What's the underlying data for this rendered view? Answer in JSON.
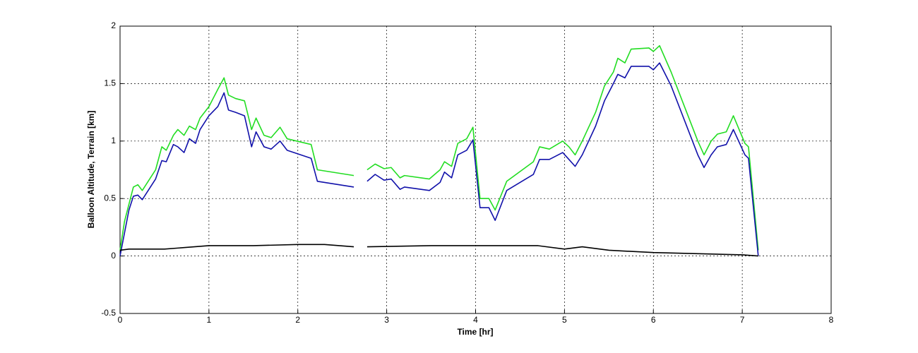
{
  "chart_data": {
    "type": "line",
    "xlabel": "Time [hr]",
    "ylabel": "Balloon Altitude, Terrain [km]",
    "xlim": [
      0,
      8
    ],
    "xticks": [
      0,
      1,
      2,
      3,
      4,
      5,
      6,
      7,
      8
    ],
    "ylim": [
      -0.5,
      2
    ],
    "yticks": [
      -0.5,
      0,
      0.5,
      1,
      1.5,
      2
    ],
    "grid": true,
    "series": [
      {
        "color": "#22dd22",
        "x": [
          0,
          0.05,
          0.1,
          0.15,
          0.2,
          0.25,
          0.4,
          0.47,
          0.52,
          0.6,
          0.65,
          0.72,
          0.78,
          0.85,
          0.9,
          1.0,
          1.1,
          1.17,
          1.22,
          1.3,
          1.4,
          1.48,
          1.53,
          1.62,
          1.7,
          1.8,
          1.88,
          2.15,
          2.22,
          2.63,
          2.7,
          2.78,
          2.87,
          2.97,
          3.05,
          3.15,
          3.2,
          3.48,
          3.6,
          3.65,
          3.73,
          3.8,
          3.9,
          3.97,
          4.05,
          4.15,
          4.22,
          4.35,
          4.65,
          4.72,
          4.83,
          4.98,
          5.05,
          5.12,
          5.2,
          5.35,
          5.45,
          5.55,
          5.6,
          5.68,
          5.75,
          5.95,
          6.0,
          6.07,
          6.2,
          6.5,
          6.57,
          6.65,
          6.72,
          6.82,
          6.9,
          7.03,
          7.07,
          7.18
        ],
        "values": [
          0.05,
          0.3,
          0.45,
          0.6,
          0.62,
          0.57,
          0.75,
          0.95,
          0.92,
          1.05,
          1.1,
          1.05,
          1.13,
          1.1,
          1.2,
          1.3,
          1.45,
          1.55,
          1.4,
          1.37,
          1.35,
          1.1,
          1.2,
          1.05,
          1.03,
          1.12,
          1.02,
          0.97,
          0.75,
          0.7,
          null,
          0.75,
          0.8,
          0.76,
          0.77,
          0.68,
          0.7,
          0.67,
          0.75,
          0.82,
          0.78,
          0.98,
          1.02,
          1.12,
          0.5,
          0.5,
          0.4,
          0.65,
          0.82,
          0.95,
          0.93,
          1.0,
          0.95,
          0.88,
          1.0,
          1.25,
          1.48,
          1.6,
          1.72,
          1.68,
          1.8,
          1.81,
          1.78,
          1.83,
          1.6,
          1.0,
          0.88,
          1.0,
          1.06,
          1.08,
          1.22,
          0.98,
          0.95,
          0.05
        ]
      },
      {
        "color": "#1111aa",
        "x": [
          0,
          0.05,
          0.1,
          0.15,
          0.2,
          0.25,
          0.4,
          0.47,
          0.52,
          0.6,
          0.65,
          0.72,
          0.78,
          0.85,
          0.9,
          1.0,
          1.1,
          1.17,
          1.22,
          1.3,
          1.4,
          1.48,
          1.53,
          1.62,
          1.7,
          1.8,
          1.88,
          2.15,
          2.22,
          2.63,
          2.7,
          2.78,
          2.87,
          2.97,
          3.05,
          3.15,
          3.2,
          3.48,
          3.6,
          3.65,
          3.73,
          3.8,
          3.9,
          3.97,
          4.05,
          4.15,
          4.22,
          4.35,
          4.65,
          4.72,
          4.83,
          4.98,
          5.05,
          5.12,
          5.2,
          5.35,
          5.45,
          5.55,
          5.6,
          5.68,
          5.75,
          5.95,
          6.0,
          6.07,
          6.2,
          6.5,
          6.57,
          6.65,
          6.72,
          6.82,
          6.9,
          7.03,
          7.07,
          7.18
        ],
        "values": [
          0.0,
          0.2,
          0.4,
          0.52,
          0.53,
          0.49,
          0.67,
          0.83,
          0.82,
          0.97,
          0.95,
          0.9,
          1.02,
          0.98,
          1.1,
          1.22,
          1.3,
          1.42,
          1.27,
          1.25,
          1.22,
          0.95,
          1.08,
          0.95,
          0.93,
          1.0,
          0.92,
          0.85,
          0.65,
          0.6,
          null,
          0.65,
          0.71,
          0.66,
          0.67,
          0.58,
          0.6,
          0.57,
          0.64,
          0.73,
          0.68,
          0.88,
          0.92,
          1.01,
          0.42,
          0.42,
          0.31,
          0.57,
          0.71,
          0.84,
          0.84,
          0.9,
          0.84,
          0.78,
          0.88,
          1.13,
          1.35,
          1.5,
          1.58,
          1.55,
          1.65,
          1.65,
          1.62,
          1.68,
          1.48,
          0.88,
          0.77,
          0.88,
          0.95,
          0.97,
          1.1,
          0.88,
          0.85,
          0.0
        ]
      },
      {
        "color": "#000000",
        "x": [
          0,
          0.1,
          0.5,
          1.0,
          1.5,
          2.0,
          2.3,
          2.63,
          2.7,
          2.78,
          3.5,
          4.0,
          4.7,
          5.0,
          5.2,
          5.5,
          6.0,
          6.5,
          7.0,
          7.18
        ],
        "values": [
          0.05,
          0.06,
          0.06,
          0.09,
          0.09,
          0.1,
          0.1,
          0.08,
          null,
          0.08,
          0.09,
          0.09,
          0.09,
          0.06,
          0.08,
          0.05,
          0.03,
          0.02,
          0.01,
          0.0
        ]
      }
    ]
  }
}
